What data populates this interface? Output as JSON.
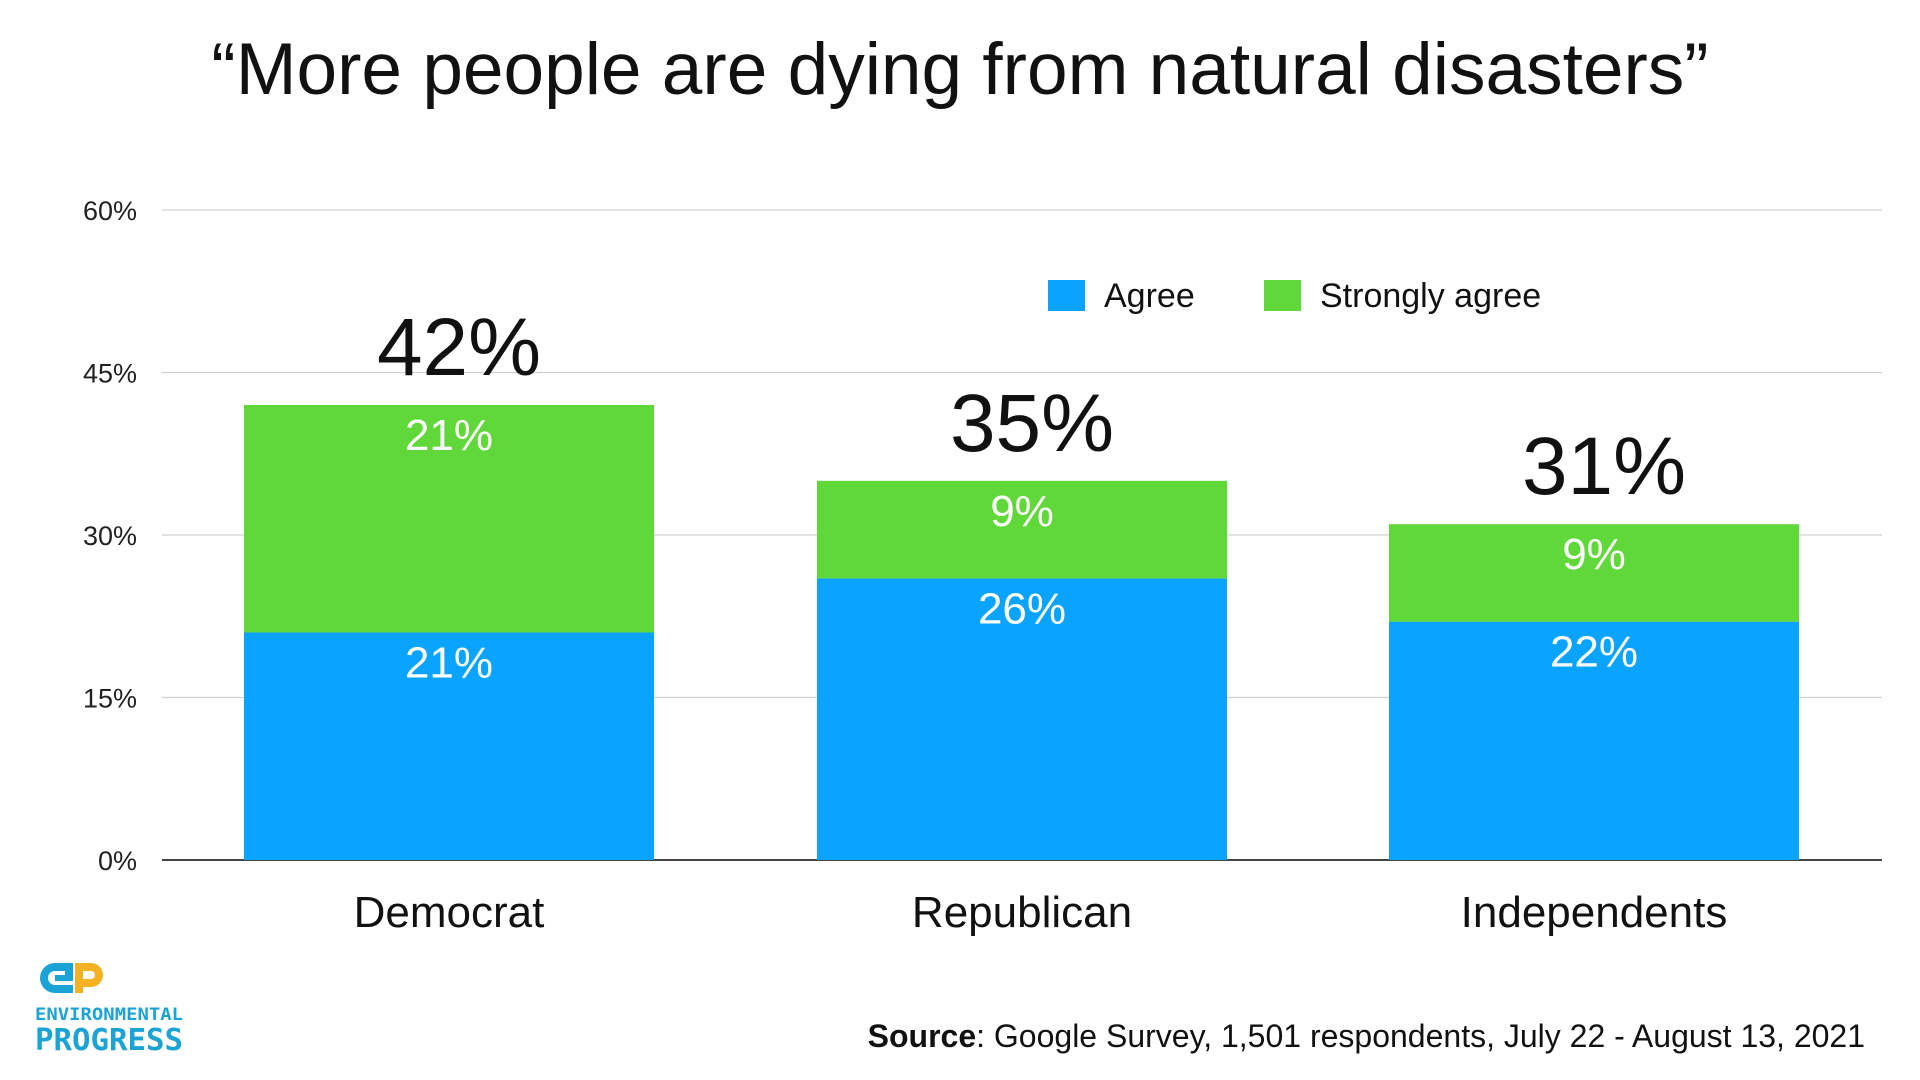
{
  "chart_data": {
    "type": "bar",
    "stacked": true,
    "title": "“More people are dying from natural disasters”",
    "categories": [
      "Democrat",
      "Republican",
      "Independents"
    ],
    "series": [
      {
        "name": "Agree",
        "color": "#0aa3fe",
        "values": [
          21,
          26,
          22
        ],
        "labels": [
          "21%",
          "26%",
          "22%"
        ]
      },
      {
        "name": "Strongly agree",
        "color": "#61d83a",
        "values": [
          21,
          9,
          9
        ],
        "labels": [
          "21%",
          "9%",
          "9%"
        ]
      }
    ],
    "totals": [
      42,
      35,
      31
    ],
    "total_labels": [
      "42%",
      "35%",
      "31%"
    ],
    "ylim": [
      0,
      60
    ],
    "yticks": [
      0,
      15,
      30,
      45,
      60
    ],
    "ytick_labels": [
      "0%",
      "15%",
      "30%",
      "45%",
      "60%"
    ],
    "xlabel": "",
    "ylabel": "",
    "grid": true,
    "legend": {
      "position": "top-right",
      "entries": [
        "Agree",
        "Strongly agree"
      ]
    }
  },
  "source": {
    "label": "Source",
    "text": ": Google Survey, 1,501 respondents, July 22 - August 13, 2021"
  },
  "logo": {
    "line1": "ENVIRONMENTAL",
    "line2": "PROGRESS",
    "colors": {
      "blue": "#1ba3d6",
      "yellow": "#f4b223"
    }
  }
}
